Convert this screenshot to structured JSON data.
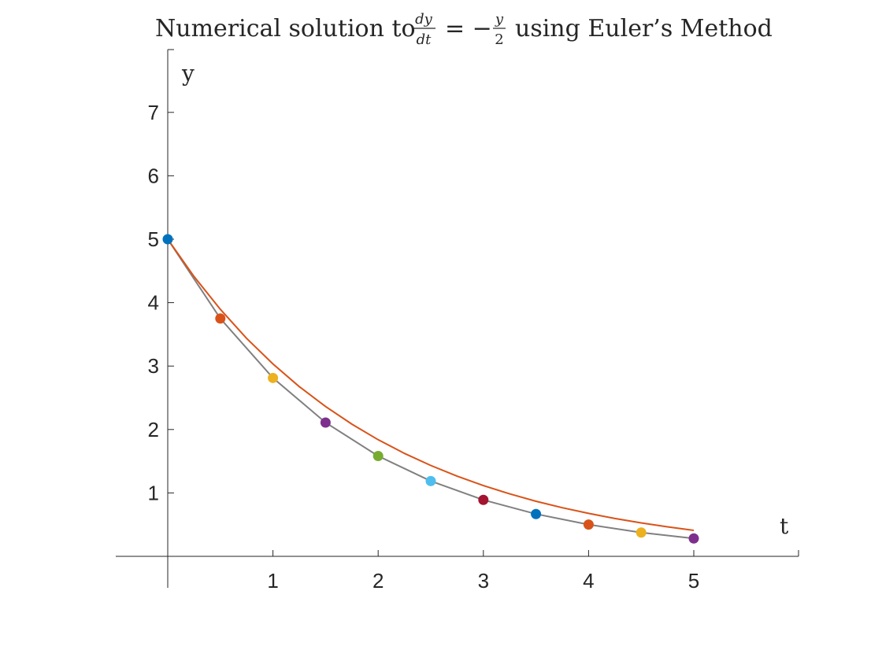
{
  "chart_data": {
    "type": "line",
    "title": {
      "prefix": "Numerical solution to",
      "frac1_num": "dy",
      "frac1_den": "dt",
      "equals": "= −",
      "frac2_num": "y",
      "frac2_den": "2",
      "suffix": "using Euler’s Method"
    },
    "xlabel": "t",
    "ylabel": "y",
    "xlim": [
      -0.5,
      6
    ],
    "ylim": [
      0,
      8
    ],
    "x_ticks": [
      1,
      2,
      3,
      4,
      5
    ],
    "y_ticks": [
      1,
      2,
      3,
      4,
      5,
      6,
      7
    ],
    "series": [
      {
        "kind": "exact",
        "color": "#D95319",
        "x": [
          0,
          0.25,
          0.5,
          0.75,
          1,
          1.25,
          1.5,
          1.75,
          2,
          2.25,
          2.5,
          2.75,
          3,
          3.25,
          3.5,
          3.75,
          4,
          4.25,
          4.5,
          4.75,
          5
        ],
        "values": [
          5,
          4.412,
          3.894,
          3.436,
          3.033,
          2.676,
          2.362,
          2.084,
          1.839,
          1.623,
          1.433,
          1.264,
          1.116,
          0.985,
          0.869,
          0.767,
          0.677,
          0.597,
          0.527,
          0.465,
          0.41
        ]
      },
      {
        "kind": "euler",
        "color": "#808080",
        "x": [
          0,
          0.5,
          1,
          1.5,
          2,
          2.5,
          3,
          3.5,
          4,
          4.5,
          5
        ],
        "values": [
          5,
          3.75,
          2.8125,
          2.109,
          1.582,
          1.187,
          0.89,
          0.667,
          0.501,
          0.375,
          0.282
        ],
        "marker_colors": [
          "#0072BD",
          "#D95319",
          "#EDB120",
          "#7E2F8E",
          "#77AC30",
          "#4DBEEE",
          "#A2142F",
          "#0072BD",
          "#D95319",
          "#EDB120",
          "#7E2F8E"
        ]
      }
    ],
    "grid": false,
    "axis_color": "#262626"
  }
}
